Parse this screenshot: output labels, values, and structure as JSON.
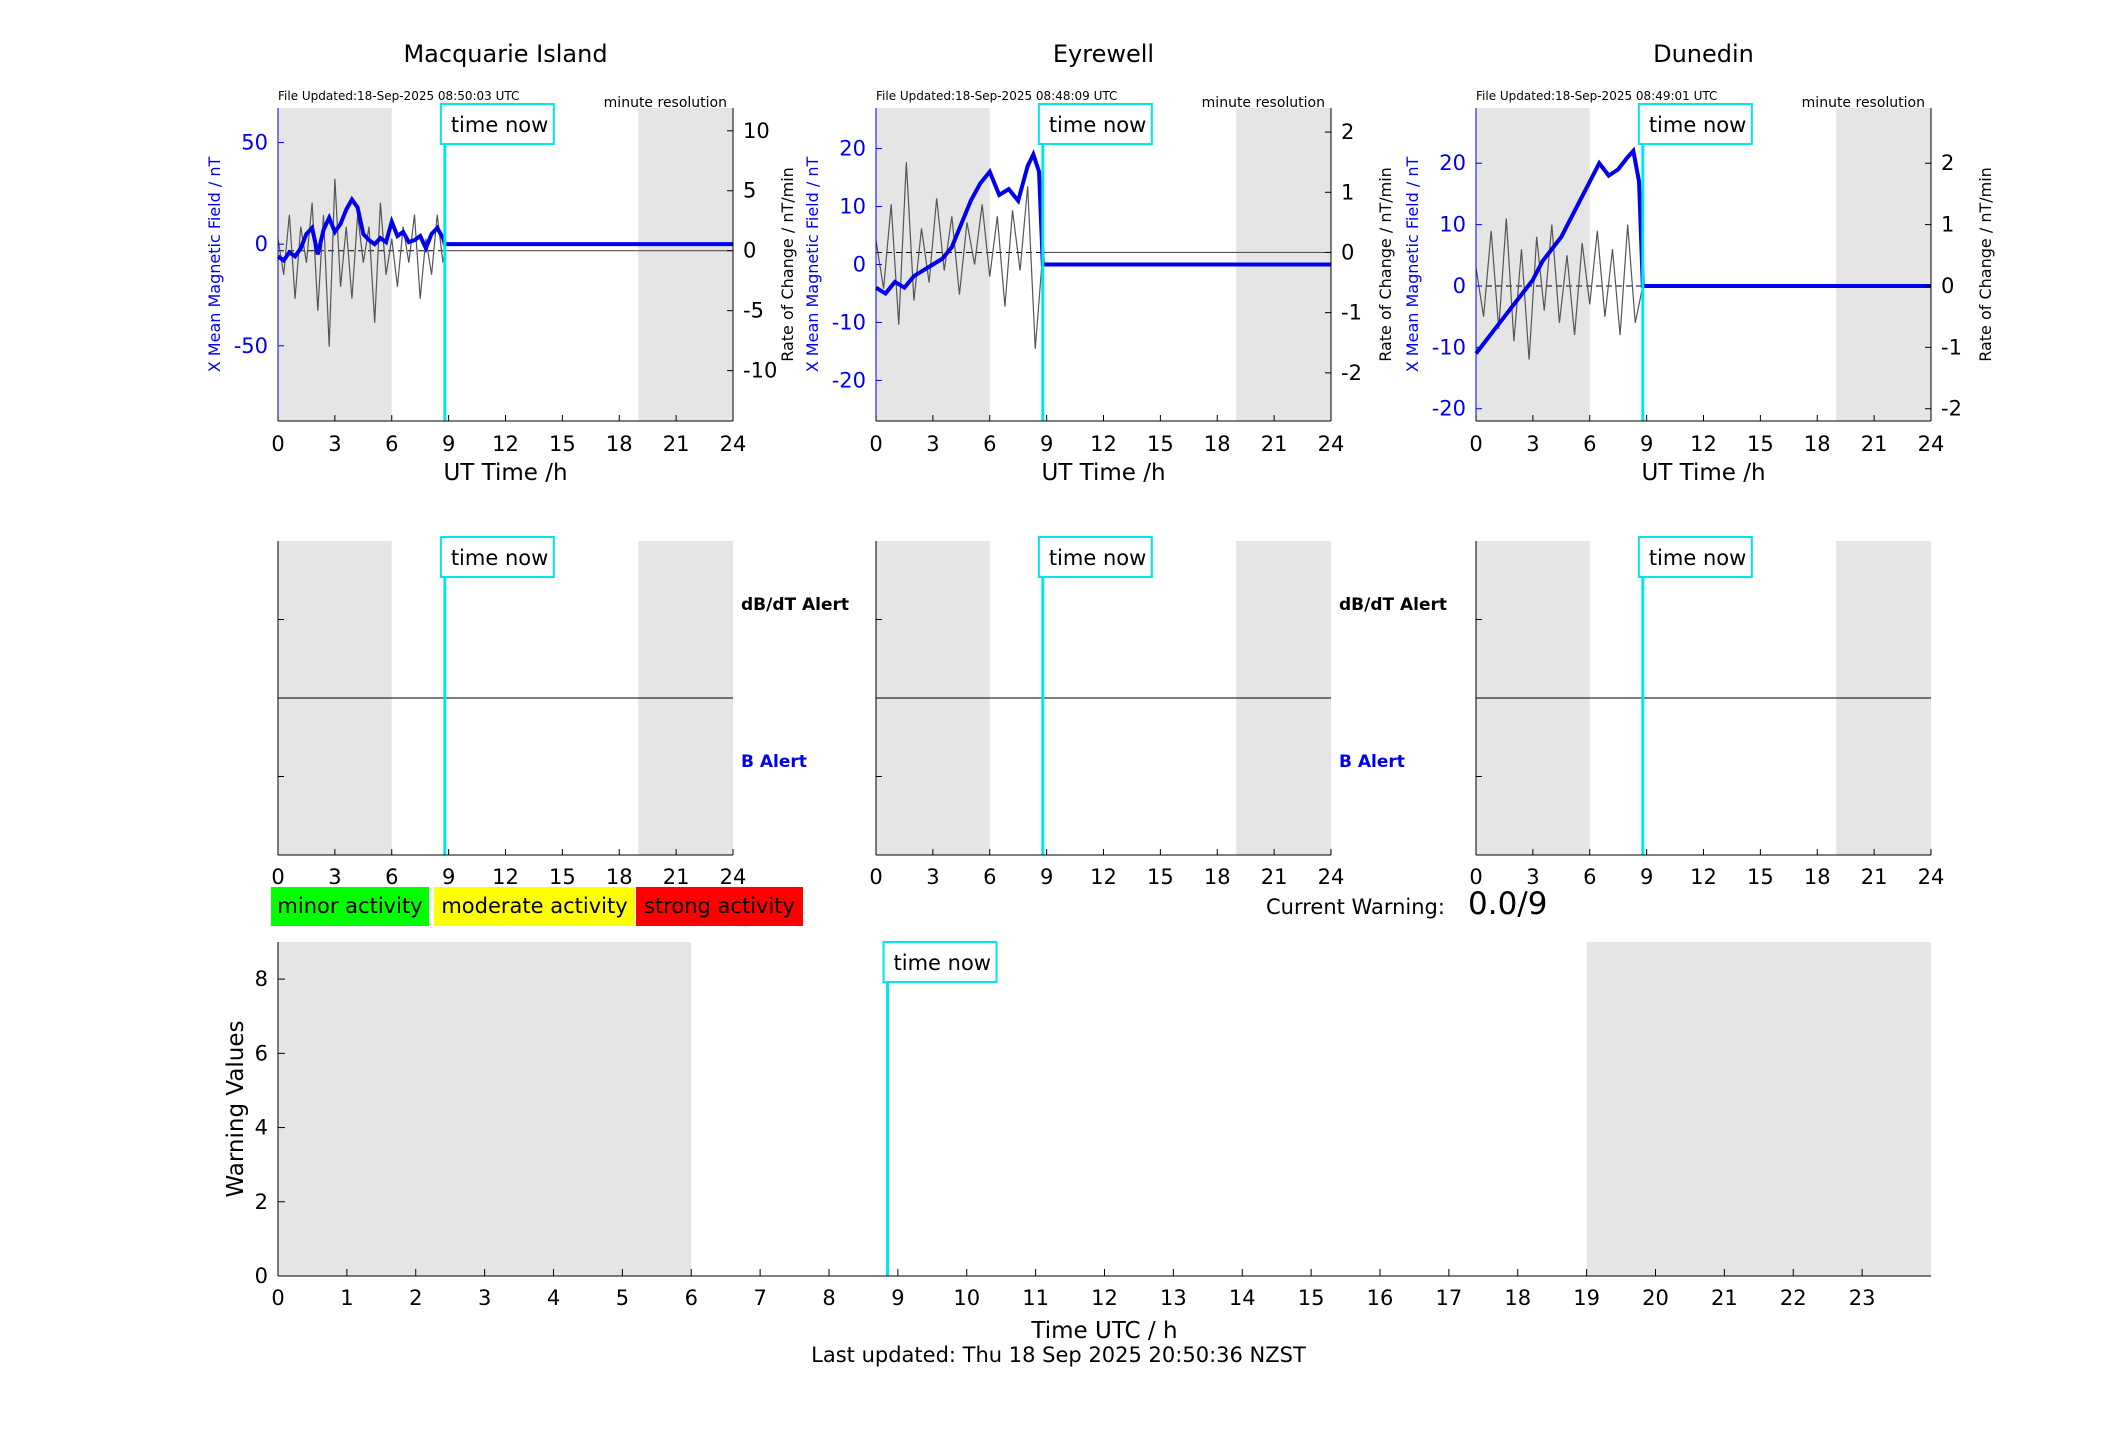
{
  "footer": "Last updated: Thu 18 Sep 2025 20:50:36 NZST",
  "current_warning": {
    "label": "Current Warning:",
    "value": "0.0/9"
  },
  "legend": [
    {
      "label": "minor activity",
      "color": "#00ff00"
    },
    {
      "label": "moderate activity",
      "color": "#ffff00"
    },
    {
      "label": "strong activity",
      "color": "#ff0000"
    }
  ],
  "colors": {
    "field_line": "#0000ee",
    "rate_line": "#555555",
    "time_now": "#00e5ee",
    "shade": "#e5e5e5",
    "b_alert": "#0000ee"
  },
  "chart_data": [
    {
      "type": "line",
      "title": "Macquarie Island",
      "file_updated": "File Updated:18-Sep-2025 08:50:03 UTC",
      "resolution": "minute resolution",
      "xlabel": "UT Time /h",
      "ylabel_left": "X Mean Magnetic Field / nT",
      "ylabel_right": "Rate of Change / nT/min",
      "xlim": [
        0,
        24
      ],
      "xticks": [
        0,
        3,
        6,
        9,
        12,
        15,
        18,
        21,
        24
      ],
      "ylim_left": [
        -87,
        67
      ],
      "yticks_left": [
        -50,
        0,
        50
      ],
      "ylim_right": [
        -14.2,
        11.9
      ],
      "yticks_right": [
        -10,
        -5,
        0,
        5,
        10
      ],
      "shaded_x": [
        [
          0,
          6
        ],
        [
          19,
          24
        ]
      ],
      "time_now": 8.8,
      "time_now_label": "time now",
      "field_x": [
        0,
        0.3,
        0.6,
        0.9,
        1.2,
        1.5,
        1.8,
        2.1,
        2.4,
        2.7,
        3.0,
        3.3,
        3.6,
        3.9,
        4.2,
        4.5,
        4.8,
        5.1,
        5.4,
        5.7,
        6.0,
        6.3,
        6.6,
        6.9,
        7.2,
        7.5,
        7.8,
        8.1,
        8.4,
        8.7,
        8.8,
        24
      ],
      "field_y": [
        -6,
        -8,
        -4,
        -6,
        -2,
        5,
        8,
        -5,
        7,
        13,
        6,
        10,
        17,
        22,
        18,
        5,
        2,
        0,
        3,
        1,
        11,
        4,
        6,
        1,
        2,
        4,
        -2,
        5,
        8,
        3,
        0,
        0
      ],
      "rate_x": [
        0,
        0.3,
        0.6,
        0.9,
        1.2,
        1.5,
        1.8,
        2.1,
        2.4,
        2.7,
        3.0,
        3.3,
        3.6,
        3.9,
        4.2,
        4.5,
        4.8,
        5.1,
        5.4,
        5.7,
        6.0,
        6.3,
        6.6,
        6.9,
        7.2,
        7.5,
        7.8,
        8.1,
        8.4,
        8.7,
        8.8,
        24
      ],
      "rate_y": [
        1,
        -2,
        3,
        -4,
        2,
        -1,
        4,
        -5,
        3,
        -8,
        6,
        -3,
        2,
        -4,
        3,
        -1,
        2,
        -6,
        4,
        -2,
        1,
        -3,
        2,
        -1,
        3,
        -4,
        1,
        -2,
        3,
        -1,
        0,
        0
      ],
      "alert_labels": {
        "dbdt": "dB/dT Alert",
        "b": "B Alert"
      },
      "alert_xticks": [
        0,
        3,
        6,
        9,
        12,
        15,
        18,
        21,
        24
      ]
    },
    {
      "type": "line",
      "title": "Eyrewell",
      "file_updated": "File Updated:18-Sep-2025 08:48:09 UTC",
      "resolution": "minute resolution",
      "xlabel": "UT Time /h",
      "ylabel_left": "X Mean Magnetic Field / nT",
      "ylabel_right": "Rate of Change / nT/min",
      "xlim": [
        0,
        24
      ],
      "xticks": [
        0,
        3,
        6,
        9,
        12,
        15,
        18,
        21,
        24
      ],
      "ylim_left": [
        -27,
        27
      ],
      "yticks_left": [
        -20,
        -10,
        0,
        10,
        20
      ],
      "ylim_right": [
        -2.8,
        2.4
      ],
      "yticks_right": [
        -2,
        -1,
        0,
        1,
        2
      ],
      "shaded_x": [
        [
          0,
          6
        ],
        [
          19,
          24
        ]
      ],
      "time_now": 8.8,
      "time_now_label": "time now",
      "field_x": [
        0,
        0.5,
        1.0,
        1.5,
        2.0,
        2.5,
        3.0,
        3.5,
        4.0,
        4.5,
        5.0,
        5.5,
        6.0,
        6.5,
        7.0,
        7.5,
        8.0,
        8.3,
        8.6,
        8.8,
        24
      ],
      "field_y": [
        -4,
        -5,
        -3,
        -4,
        -2,
        -1,
        0,
        1,
        3,
        7,
        11,
        14,
        16,
        12,
        13,
        11,
        17,
        19,
        16,
        0,
        0
      ],
      "rate_x": [
        0,
        0.4,
        0.8,
        1.2,
        1.6,
        2.0,
        2.4,
        2.8,
        3.2,
        3.6,
        4.0,
        4.4,
        4.8,
        5.2,
        5.6,
        6.0,
        6.4,
        6.8,
        7.2,
        7.6,
        8.0,
        8.4,
        8.8,
        24
      ],
      "rate_y": [
        0.2,
        -0.6,
        0.8,
        -1.2,
        1.5,
        -0.8,
        0.4,
        -0.5,
        0.9,
        -0.3,
        0.6,
        -0.7,
        0.5,
        -0.2,
        0.8,
        -0.4,
        0.6,
        -0.9,
        0.7,
        -0.3,
        1.1,
        -1.6,
        0,
        0
      ],
      "alert_labels": {
        "dbdt": "dB/dT Alert",
        "b": "B Alert"
      },
      "alert_xticks": [
        0,
        3,
        6,
        9,
        12,
        15,
        18,
        21,
        24
      ]
    },
    {
      "type": "line",
      "title": "Dunedin",
      "file_updated": "File Updated:18-Sep-2025 08:49:01 UTC",
      "resolution": "minute resolution",
      "xlabel": "UT Time /h",
      "ylabel_left": "X Mean Magnetic Field / nT",
      "ylabel_right": "Rate of Change / nT/min",
      "xlim": [
        0,
        24
      ],
      "xticks": [
        0,
        3,
        6,
        9,
        12,
        15,
        18,
        21,
        24
      ],
      "ylim_left": [
        -22,
        29
      ],
      "yticks_left": [
        -20,
        -10,
        0,
        10,
        20
      ],
      "ylim_right": [
        -2.2,
        2.9
      ],
      "yticks_right": [
        -2,
        -1,
        0,
        1,
        2
      ],
      "shaded_x": [
        [
          0,
          6
        ],
        [
          19,
          24
        ]
      ],
      "time_now": 8.8,
      "time_now_label": "time now",
      "field_x": [
        0,
        0.5,
        1.0,
        1.5,
        2.0,
        2.5,
        3.0,
        3.5,
        4.0,
        4.5,
        5.0,
        5.5,
        6.0,
        6.5,
        7.0,
        7.5,
        8.0,
        8.3,
        8.6,
        8.8,
        24
      ],
      "field_y": [
        -11,
        -9,
        -7,
        -5,
        -3,
        -1,
        1,
        4,
        6,
        8,
        11,
        14,
        17,
        20,
        18,
        19,
        21,
        22,
        17,
        0,
        0
      ],
      "rate_x": [
        0,
        0.4,
        0.8,
        1.2,
        1.6,
        2.0,
        2.4,
        2.8,
        3.2,
        3.6,
        4.0,
        4.4,
        4.8,
        5.2,
        5.6,
        6.0,
        6.4,
        6.8,
        7.2,
        7.6,
        8.0,
        8.4,
        8.8,
        24
      ],
      "rate_y": [
        0.3,
        -0.5,
        0.9,
        -0.7,
        1.1,
        -0.9,
        0.6,
        -1.2,
        0.8,
        -0.4,
        1.0,
        -0.6,
        0.5,
        -0.8,
        0.7,
        -0.3,
        0.9,
        -0.5,
        0.6,
        -0.8,
        1.0,
        -0.6,
        0,
        0
      ],
      "alert_labels": {
        "dbdt": "dB/dT Alert",
        "b": "B Alert"
      },
      "alert_xticks": [
        0,
        3,
        6,
        9,
        12,
        15,
        18,
        21,
        24
      ]
    },
    {
      "type": "bar",
      "xlabel": "Time UTC / h",
      "ylabel": "Warning Values",
      "xlim": [
        0,
        24
      ],
      "xticks": [
        0,
        1,
        2,
        3,
        4,
        5,
        6,
        7,
        8,
        9,
        10,
        11,
        12,
        13,
        14,
        15,
        16,
        17,
        18,
        19,
        20,
        21,
        22,
        23
      ],
      "ylim": [
        0,
        9
      ],
      "yticks": [
        0,
        2,
        4,
        6,
        8
      ],
      "shaded_x": [
        [
          0,
          6
        ],
        [
          19,
          24
        ]
      ],
      "time_now": 8.85,
      "time_now_label": "time now",
      "values": []
    }
  ]
}
